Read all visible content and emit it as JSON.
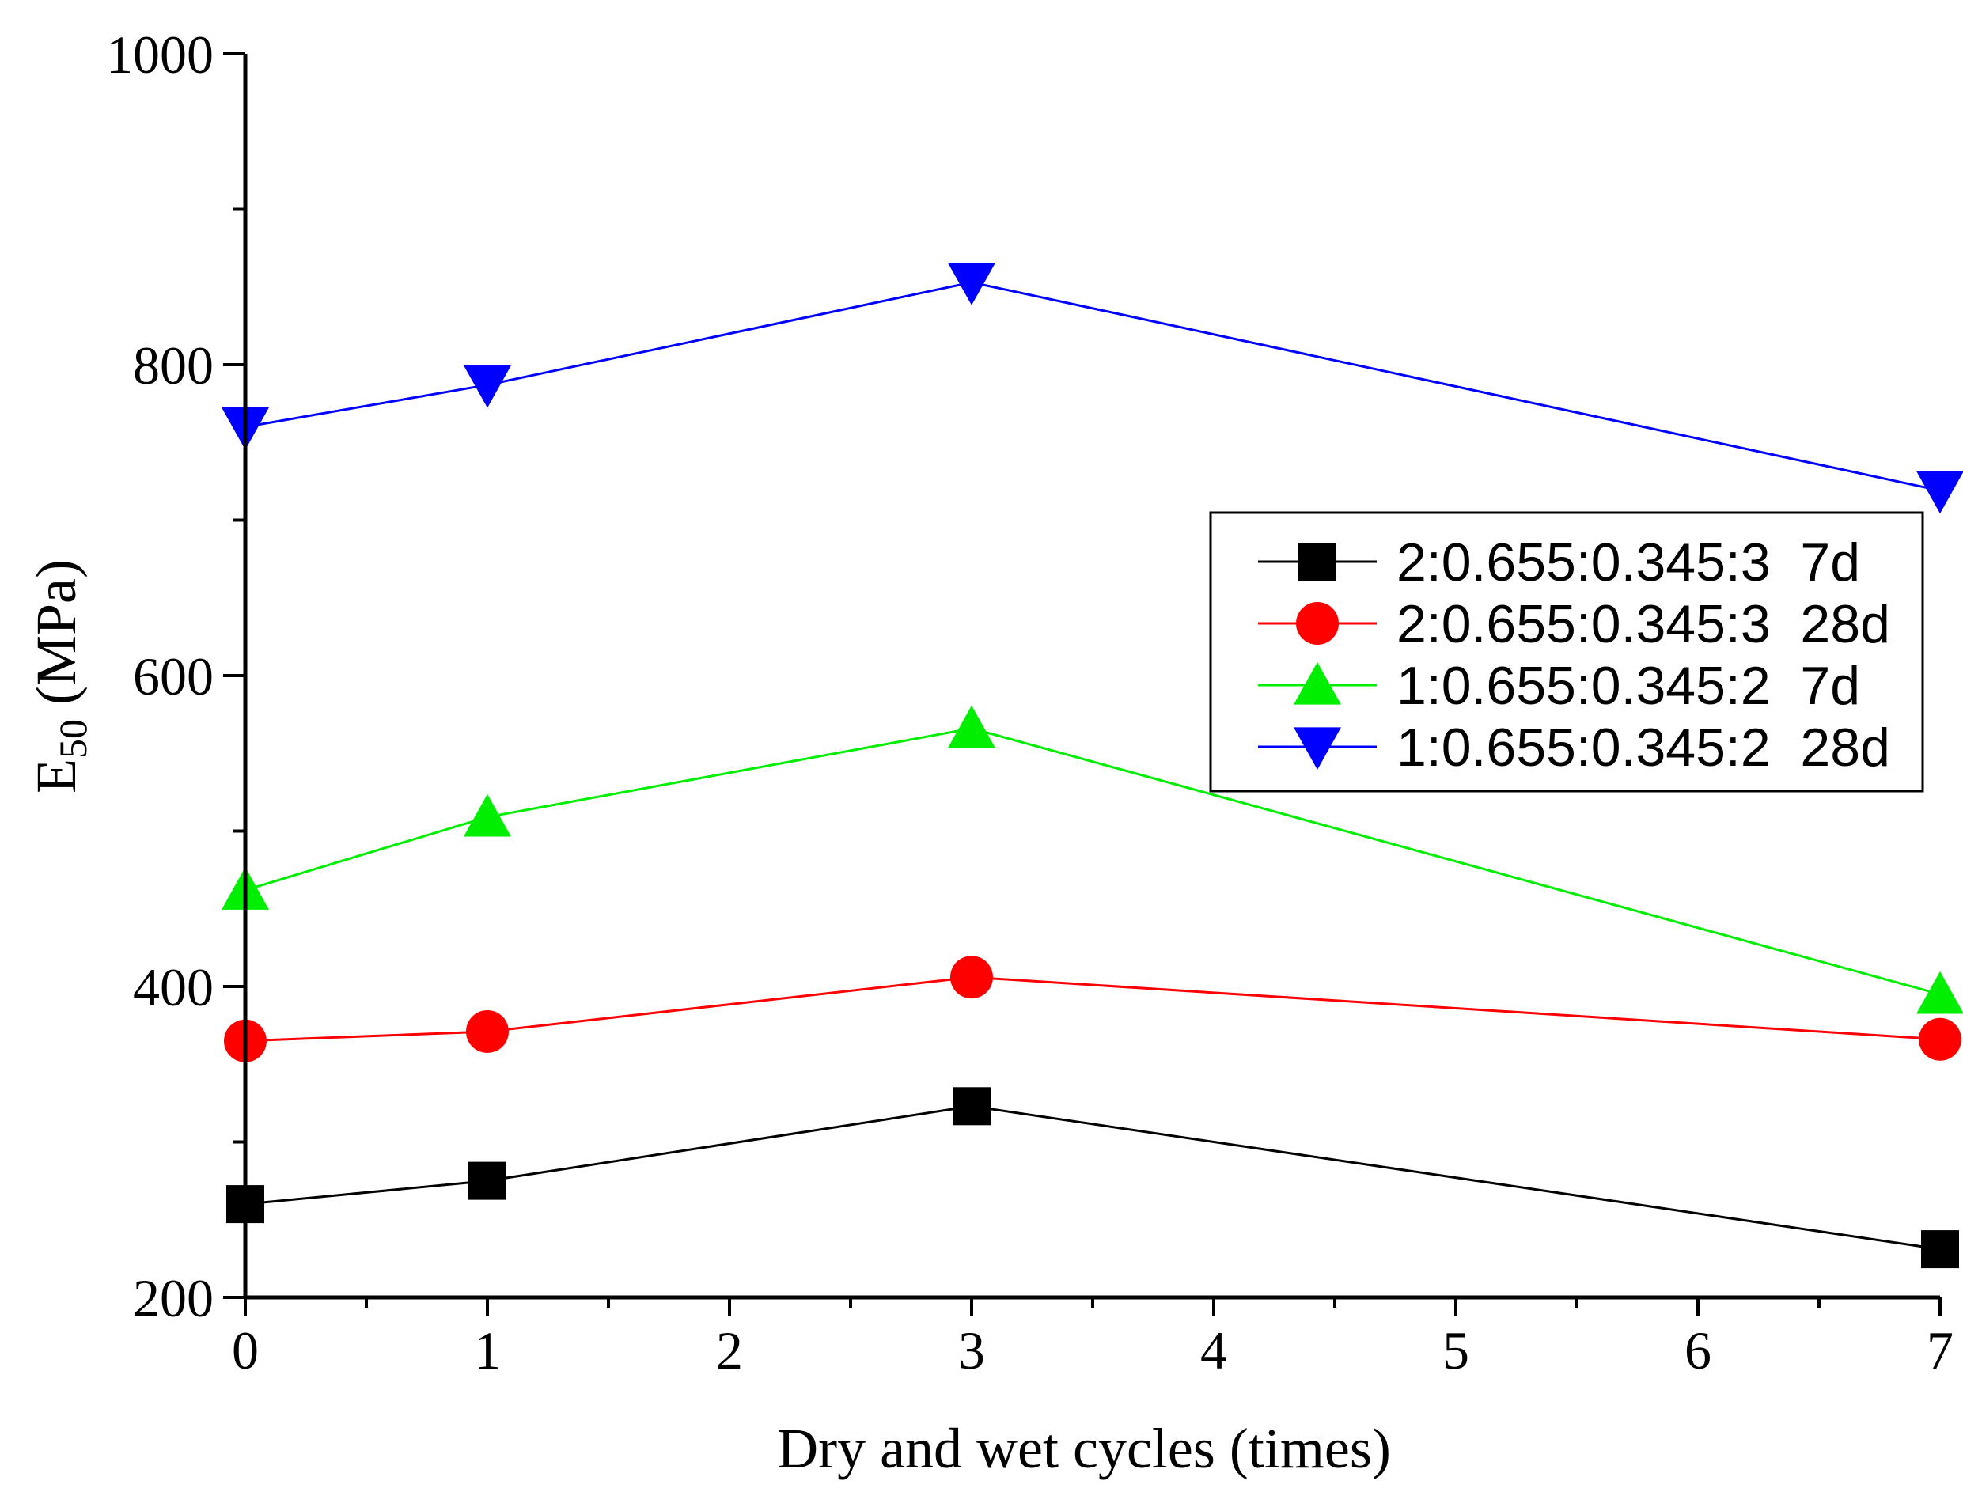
{
  "chart_data": {
    "type": "line",
    "title": "",
    "xlabel": "Dry and wet cycles (times)",
    "ylabel": {
      "base": "E",
      "subscript": "50",
      "unit": " (MPa)"
    },
    "x": [
      0,
      1,
      3,
      7
    ],
    "xlim": [
      0,
      7
    ],
    "ylim": [
      200,
      1000
    ],
    "x_ticks": [
      0,
      1,
      2,
      3,
      4,
      5,
      6,
      7
    ],
    "x_tick_labels": [
      "0",
      "1",
      "2",
      "3",
      "4",
      "5",
      "6",
      "7"
    ],
    "y_ticks": [
      200,
      400,
      600,
      800,
      1000
    ],
    "y_tick_labels": [
      "200",
      "400",
      "600",
      "800",
      "1000"
    ],
    "grid": false,
    "legend_position": "right",
    "series": [
      {
        "name": "2:0.655:0.345:3  7d",
        "color": "#000000",
        "marker": "square",
        "values": [
          260,
          275,
          323,
          231
        ]
      },
      {
        "name": "2:0.655:0.345:3  28d",
        "color": "#ff0000",
        "marker": "circle",
        "values": [
          365,
          371,
          406,
          366
        ]
      },
      {
        "name": "1:0.655:0.345:2  7d",
        "color": "#00ee00",
        "marker": "triangle-up",
        "values": [
          462,
          509,
          566,
          395
        ]
      },
      {
        "name": "1:0.655:0.345:2  28d",
        "color": "#0000ff",
        "marker": "triangle-down",
        "values": [
          760,
          787,
          853,
          719
        ]
      }
    ]
  }
}
